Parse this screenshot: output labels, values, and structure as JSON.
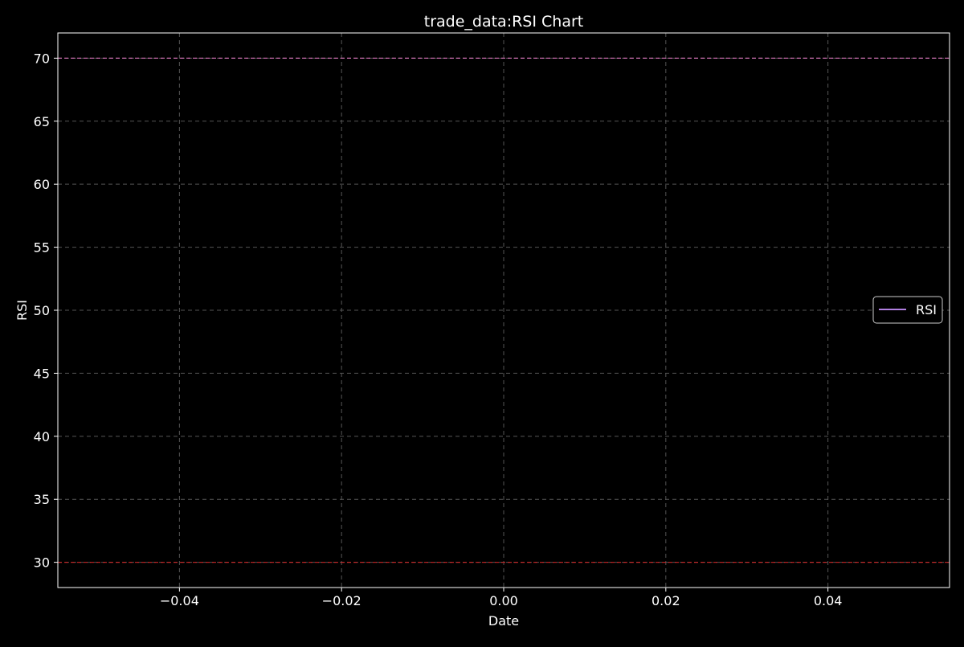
{
  "chart_data": {
    "type": "line",
    "title": "trade_data:RSI Chart",
    "xlabel": "Date",
    "ylabel": "RSI",
    "xlim": [
      -0.055,
      0.055
    ],
    "ylim": [
      28,
      72
    ],
    "x_ticks": [
      -0.04,
      -0.02,
      0.0,
      0.02,
      0.04
    ],
    "x_tick_labels": [
      "−0.04",
      "−0.02",
      "0.00",
      "0.02",
      "0.04"
    ],
    "y_ticks": [
      30,
      35,
      40,
      45,
      50,
      55,
      60,
      65,
      70
    ],
    "y_tick_labels": [
      "30",
      "35",
      "40",
      "45",
      "50",
      "55",
      "60",
      "65",
      "70"
    ],
    "grid": true,
    "legend_position": "center-right",
    "series": [
      {
        "name": "RSI",
        "color": "#b07fe0",
        "x": [],
        "y": []
      }
    ],
    "reference_lines": [
      {
        "y": 70,
        "color": "#e377c2",
        "style": "dashed"
      },
      {
        "y": 30,
        "color": "#d62728",
        "style": "dashed"
      }
    ],
    "colors": {
      "background": "#000000",
      "axes_edge": "#ffffff",
      "text": "#ffffff",
      "grid": "#555555"
    }
  }
}
